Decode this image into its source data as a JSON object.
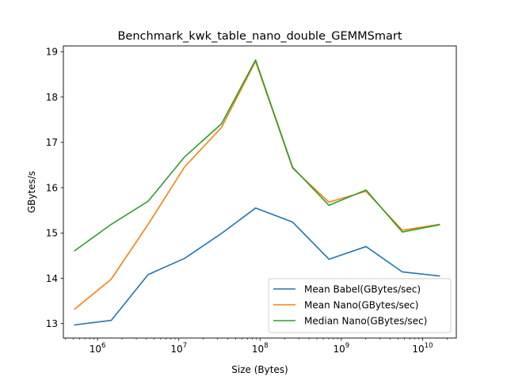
{
  "chart_data": {
    "type": "line",
    "title": "Benchmark_kwk_table_nano_double_GEMMSmart",
    "xlabel": "Size (Bytes)",
    "ylabel": "GBytes/s",
    "xscale": "log",
    "xlim": [
      380000,
      26000000000
    ],
    "ylim": [
      12.68,
      19.13
    ],
    "x": [
      524288,
      1474560,
      4194304,
      11796480,
      33554432,
      88080384,
      251658240,
      704643072,
      2013265920,
      5637144576,
      16106127360
    ],
    "x_ticks": [
      {
        "base": "10",
        "exp": "6",
        "value": 1000000
      },
      {
        "base": "10",
        "exp": "7",
        "value": 10000000
      },
      {
        "base": "10",
        "exp": "8",
        "value": 100000000
      },
      {
        "base": "10",
        "exp": "9",
        "value": 1000000000
      },
      {
        "base": "10",
        "exp": "10",
        "value": 10000000000
      }
    ],
    "y_ticks": [
      13,
      14,
      15,
      16,
      17,
      18,
      19
    ],
    "grid": false,
    "legend_position": "lower right",
    "series": [
      {
        "name": "Mean Babel(GBytes/sec)",
        "color": "#1f77b4",
        "values": [
          12.97,
          13.07,
          14.08,
          14.44,
          14.99,
          15.55,
          15.24,
          14.42,
          14.7,
          14.14,
          14.05
        ]
      },
      {
        "name": "Mean Nano(GBytes/sec)",
        "color": "#ff7f0e",
        "values": [
          13.32,
          13.98,
          15.19,
          16.46,
          17.33,
          18.79,
          16.43,
          15.68,
          15.92,
          15.06,
          15.19
        ]
      },
      {
        "name": "Median Nano(GBytes/sec)",
        "color": "#2ca02c",
        "values": [
          14.61,
          15.19,
          15.7,
          16.68,
          17.41,
          18.82,
          16.45,
          15.61,
          15.95,
          15.02,
          15.18
        ]
      }
    ]
  }
}
